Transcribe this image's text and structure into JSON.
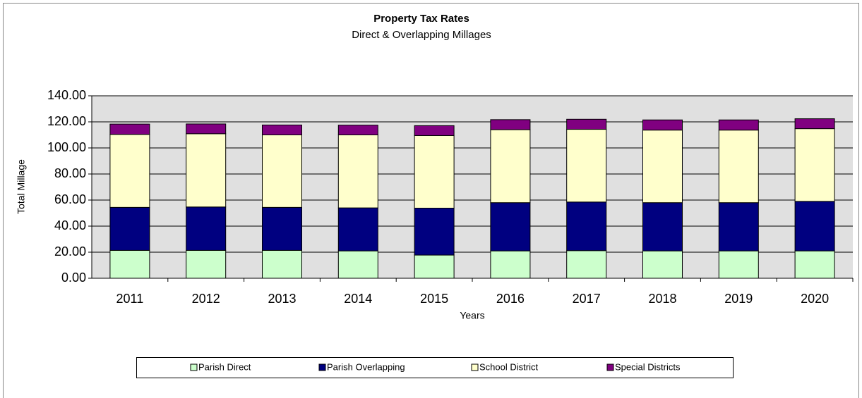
{
  "chart_data": {
    "type": "stacked_bar",
    "title": "Property Tax Rates",
    "subtitle": "Direct & Overlapping Millages",
    "x_label": "Years",
    "y_label": "Total Millage",
    "categories": [
      "2011",
      "2012",
      "2013",
      "2014",
      "2015",
      "2016",
      "2017",
      "2018",
      "2019",
      "2020"
    ],
    "series": [
      {
        "name": "Parish Direct",
        "color": "#ccffcc",
        "values": [
          21.4,
          21.4,
          21.4,
          21.0,
          17.8,
          21.0,
          21.2,
          21.0,
          21.0,
          21.0
        ]
      },
      {
        "name": "Parish Overlapping",
        "color": "#000080",
        "values": [
          33.0,
          33.3,
          33.0,
          33.0,
          36.0,
          37.0,
          37.3,
          37.0,
          37.0,
          38.0
        ]
      },
      {
        "name": "School District",
        "color": "#ffffcc",
        "values": [
          56.0,
          56.2,
          55.6,
          56.0,
          55.7,
          56.0,
          55.8,
          55.7,
          55.7,
          55.8
        ]
      },
      {
        "name": "Special Districts",
        "color": "#800080",
        "values": [
          7.9,
          7.5,
          7.6,
          7.5,
          7.6,
          7.7,
          7.7,
          7.8,
          7.8,
          7.6
        ]
      }
    ],
    "ylim": [
      0,
      140
    ],
    "yticks": [
      {
        "value": 0,
        "label": "0.00"
      },
      {
        "value": 20,
        "label": "20.00"
      },
      {
        "value": 40,
        "label": "40.00"
      },
      {
        "value": 60,
        "label": "60.00"
      },
      {
        "value": 80,
        "label": "80.00"
      },
      {
        "value": 100,
        "label": "100.00"
      },
      {
        "value": 120,
        "label": "120.00"
      },
      {
        "value": 140,
        "label": "140.00"
      }
    ],
    "grid": true,
    "legend": "bottom"
  }
}
